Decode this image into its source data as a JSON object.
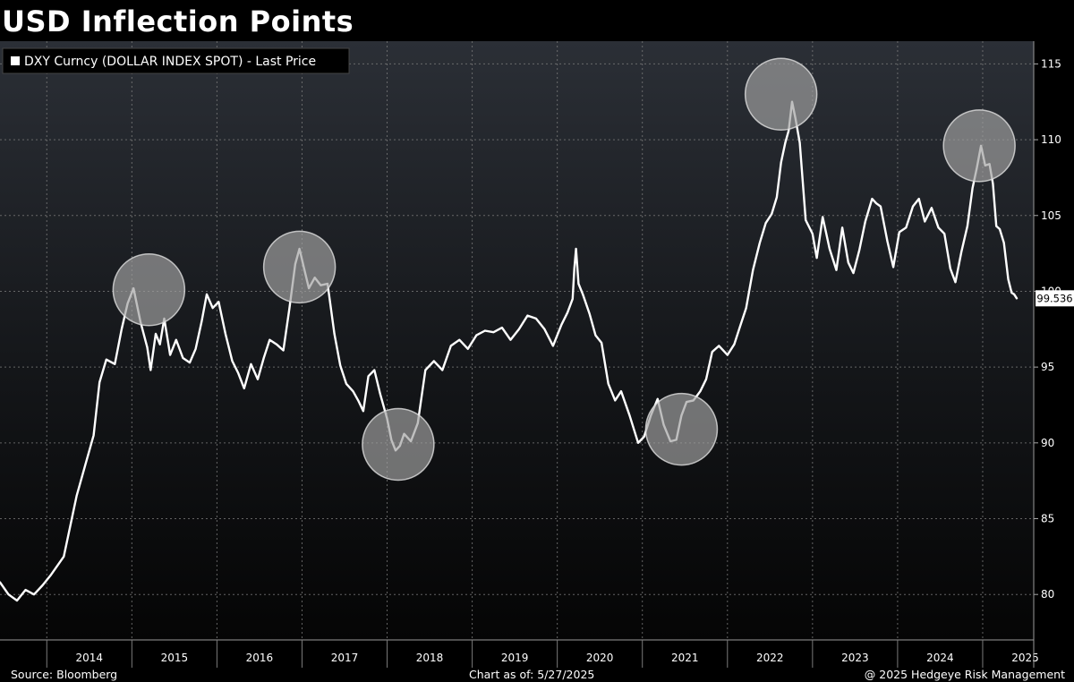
{
  "title": "USD Inflection Points",
  "chart_data": {
    "type": "line",
    "title": "USD Inflection Points",
    "legend": {
      "label": "DXY Curncy (DOLLAR INDEX SPOT) - Last Price",
      "placement": "top-left"
    },
    "ylim": [
      77,
      116.5
    ],
    "yticks": [
      80,
      85,
      90,
      95,
      100,
      105,
      110,
      115
    ],
    "xlim": [
      2013.45,
      2025.6
    ],
    "year_labels": [
      "2014",
      "2015",
      "2016",
      "2017",
      "2018",
      "2019",
      "2020",
      "2021",
      "2022",
      "2023",
      "2024",
      "2025"
    ],
    "grid": true,
    "last_value_label": "99.536",
    "last_value": 99.536,
    "series": [
      {
        "name": "DXY Curncy (DOLLAR INDEX SPOT) - Last Price",
        "color": "#ffffff",
        "x": [
          2013.45,
          2013.55,
          2013.65,
          2013.75,
          2013.85,
          2013.95,
          2014.05,
          2014.2,
          2014.35,
          2014.45,
          2014.55,
          2014.62,
          2014.7,
          2014.8,
          2014.88,
          2014.95,
          2015.02,
          2015.1,
          2015.18,
          2015.22,
          2015.28,
          2015.33,
          2015.38,
          2015.45,
          2015.52,
          2015.6,
          2015.68,
          2015.75,
          2015.82,
          2015.88,
          2015.95,
          2016.02,
          2016.1,
          2016.18,
          2016.25,
          2016.32,
          2016.4,
          2016.48,
          2016.55,
          2016.62,
          2016.7,
          2016.78,
          2016.85,
          2016.92,
          2016.97,
          2017.02,
          2017.08,
          2017.15,
          2017.22,
          2017.3,
          2017.38,
          2017.45,
          2017.52,
          2017.6,
          2017.66,
          2017.72,
          2017.78,
          2017.85,
          2017.92,
          2018.0,
          2018.05,
          2018.1,
          2018.15,
          2018.2,
          2018.28,
          2018.36,
          2018.45,
          2018.55,
          2018.65,
          2018.75,
          2018.85,
          2018.95,
          2019.05,
          2019.15,
          2019.25,
          2019.35,
          2019.45,
          2019.55,
          2019.65,
          2019.75,
          2019.85,
          2019.95,
          2020.05,
          2020.12,
          2020.18,
          2020.2,
          2020.22,
          2020.25,
          2020.3,
          2020.38,
          2020.45,
          2020.52,
          2020.6,
          2020.68,
          2020.75,
          2020.85,
          2020.95,
          2021.02,
          2021.1,
          2021.18,
          2021.25,
          2021.33,
          2021.4,
          2021.46,
          2021.52,
          2021.6,
          2021.68,
          2021.75,
          2021.82,
          2021.9,
          2022.0,
          2022.08,
          2022.15,
          2022.22,
          2022.3,
          2022.38,
          2022.45,
          2022.52,
          2022.58,
          2022.63,
          2022.68,
          2022.72,
          2022.76,
          2022.8,
          2022.85,
          2022.92,
          2023.0,
          2023.05,
          2023.12,
          2023.2,
          2023.28,
          2023.35,
          2023.42,
          2023.48,
          2023.55,
          2023.62,
          2023.7,
          2023.75,
          2023.8,
          2023.88,
          2023.95,
          2024.02,
          2024.1,
          2024.18,
          2024.25,
          2024.32,
          2024.4,
          2024.48,
          2024.55,
          2024.62,
          2024.68,
          2024.75,
          2024.82,
          2024.88,
          2024.93,
          2024.98,
          2025.03,
          2025.08,
          2025.12,
          2025.16,
          2025.2,
          2025.25,
          2025.3,
          2025.34,
          2025.37,
          2025.4
        ],
        "y": [
          80.8,
          80.0,
          79.6,
          80.3,
          80.0,
          80.6,
          81.3,
          82.5,
          86.5,
          88.5,
          90.5,
          94.0,
          95.5,
          95.2,
          97.5,
          99.2,
          100.2,
          98.0,
          96.3,
          94.8,
          97.2,
          96.5,
          98.2,
          95.8,
          96.8,
          95.6,
          95.3,
          96.2,
          98.0,
          99.8,
          98.9,
          99.3,
          97.2,
          95.4,
          94.6,
          93.6,
          95.2,
          94.2,
          95.6,
          96.8,
          96.5,
          96.1,
          98.8,
          101.8,
          102.8,
          101.6,
          100.2,
          100.9,
          100.4,
          100.5,
          97.2,
          95.1,
          93.9,
          93.4,
          92.8,
          92.1,
          94.4,
          94.8,
          93.2,
          91.6,
          90.2,
          89.5,
          89.8,
          90.6,
          90.1,
          91.3,
          94.8,
          95.4,
          94.8,
          96.4,
          96.8,
          96.2,
          97.1,
          97.4,
          97.3,
          97.6,
          96.8,
          97.5,
          98.4,
          98.2,
          97.5,
          96.4,
          97.8,
          98.6,
          99.5,
          101.5,
          102.8,
          100.5,
          99.8,
          98.5,
          97.1,
          96.6,
          93.9,
          92.8,
          93.4,
          91.8,
          90.0,
          90.4,
          91.8,
          92.9,
          91.2,
          90.1,
          90.2,
          91.8,
          92.7,
          92.8,
          93.4,
          94.2,
          96.0,
          96.4,
          95.8,
          96.5,
          97.7,
          98.9,
          101.4,
          103.2,
          104.5,
          105.1,
          106.2,
          108.5,
          109.8,
          110.6,
          112.5,
          111.4,
          109.8,
          104.7,
          103.8,
          102.2,
          104.9,
          102.8,
          101.4,
          104.2,
          101.9,
          101.2,
          102.7,
          104.6,
          106.1,
          105.8,
          105.6,
          103.3,
          101.6,
          103.9,
          104.2,
          105.6,
          106.1,
          104.6,
          105.5,
          104.2,
          103.8,
          101.5,
          100.6,
          102.6,
          104.3,
          106.8,
          108.1,
          109.6,
          108.3,
          108.4,
          107.1,
          104.3,
          104.1,
          103.2,
          100.8,
          99.9,
          99.8,
          99.536
        ]
      }
    ],
    "annotations": {
      "type": "highlight-circles",
      "color": "#a0a0a0",
      "markers": [
        {
          "x": 2015.2,
          "y": 100.1
        },
        {
          "x": 2016.97,
          "y": 101.6
        },
        {
          "x": 2018.13,
          "y": 89.9
        },
        {
          "x": 2021.46,
          "y": 90.9
        },
        {
          "x": 2022.63,
          "y": 113.0
        },
        {
          "x": 2024.96,
          "y": 109.6
        }
      ]
    }
  },
  "footer": {
    "source": "Source: Bloomberg",
    "chart_date": "Chart as of: 5/27/2025",
    "copyright": "@ 2025 Hedgeye Risk Management"
  }
}
